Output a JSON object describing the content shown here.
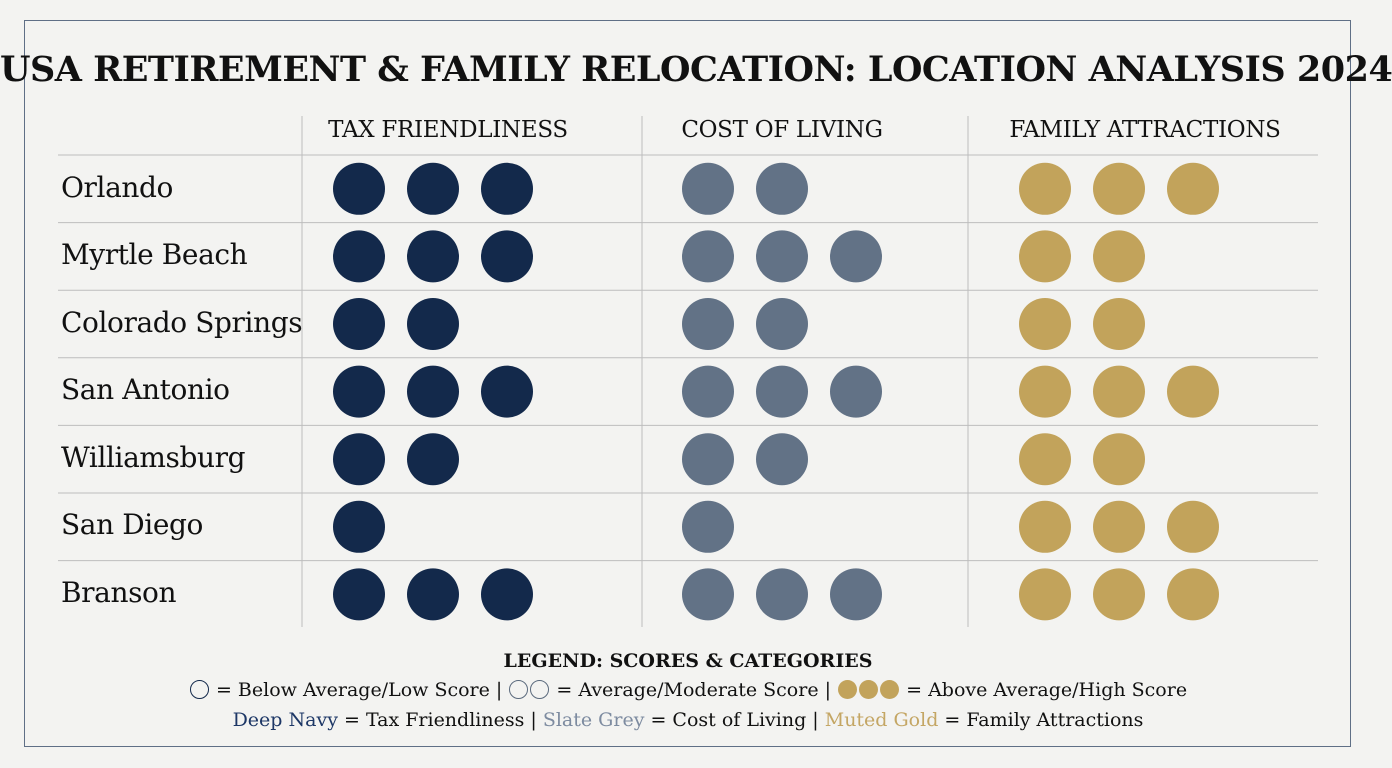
{
  "colors": {
    "tax": "#13294b",
    "cost": "#627286",
    "family": "#c2a35b",
    "grid": "#bdbdbd",
    "frame": "#5f6f86",
    "legend_tax": "#1d3766",
    "legend_cost": "#7d8ba0",
    "legend_family": "#c4a664"
  },
  "chart_data": {
    "type": "table",
    "title": "USA RETIREMENT & FAMILY RELOCATION: LOCATION ANALYSIS 2024",
    "columns": [
      "TAX FRIENDLINESS",
      "COST OF LIVING",
      "FAMILY ATTRACTIONS"
    ],
    "rows": [
      "Orlando",
      "Myrtle Beach",
      "Colorado Springs",
      "San Antonio",
      "Williamsburg",
      "San Diego",
      "Branson"
    ],
    "series": [
      {
        "name": "Tax Friendliness",
        "values": [
          3,
          3,
          2,
          3,
          2,
          1,
          3
        ]
      },
      {
        "name": "Cost of Living",
        "values": [
          2,
          3,
          2,
          3,
          2,
          1,
          3
        ]
      },
      {
        "name": "Family Attractions",
        "values": [
          3,
          2,
          2,
          3,
          2,
          3,
          3
        ]
      }
    ],
    "max_score": 3
  },
  "legend": {
    "title": "LEGEND: SCORES & CATEGORIES",
    "below_label": "= Below Average/Low Score |",
    "average_label": "= Average/Moderate Score |",
    "above_label": "= Above Average/High Score",
    "tax_name": "Deep Navy",
    "tax_desc": "= Tax Friendliness |",
    "cost_name": "Slate Grey",
    "cost_desc": "= Cost of Living |",
    "family_name": "Muted Gold",
    "family_desc": "= Family Attractions"
  }
}
